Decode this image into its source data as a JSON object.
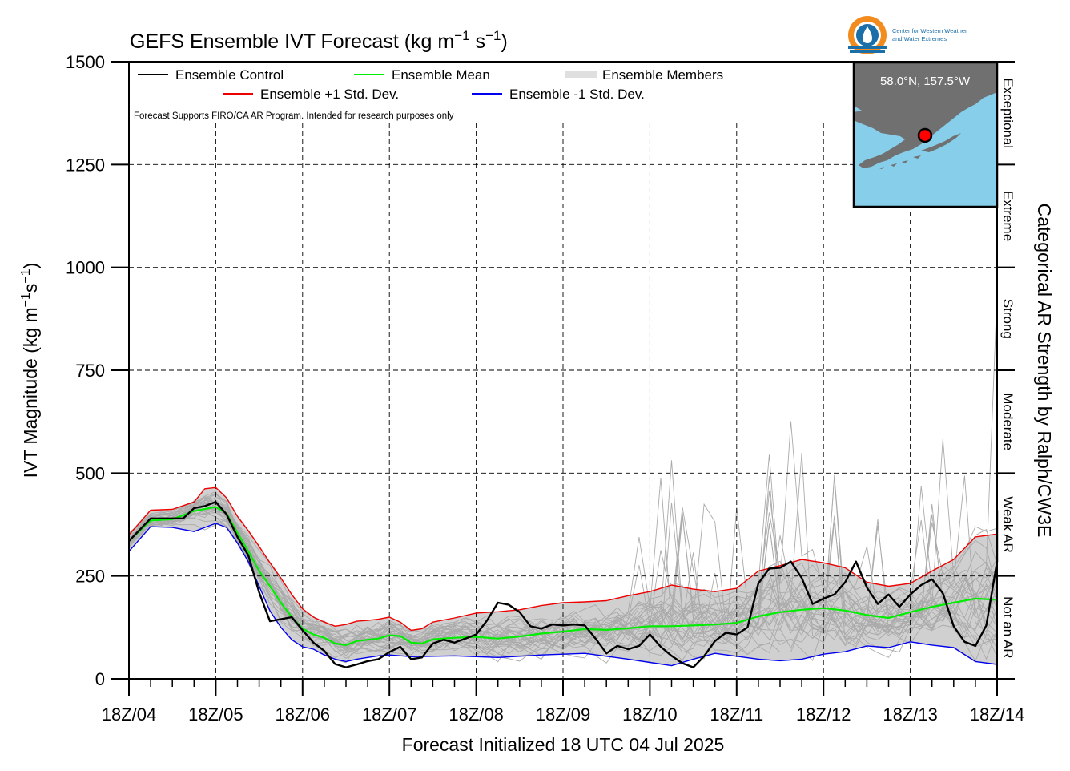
{
  "page": {
    "title_main": "GEFS Ensemble IVT Forecast (kg m",
    "title_exp1": "−1",
    "title_mid": " s",
    "title_exp2": "−1",
    "title_end": ")",
    "disclaimer": "Forecast Supports FIRO/CA AR Program. Intended for research purposes only",
    "logo_line1": "Center for Western Weather",
    "logo_line2": "and Water Extremes",
    "location": "58.0°N, 157.5°W"
  },
  "colors": {
    "control": "#000000",
    "mean": "#00ee00",
    "plus_std": "#ee0000",
    "minus_std": "#0000ee",
    "members": "#aaaaaa",
    "spread_fill": "#d0d0d0",
    "map_ocean": "#87ceeb",
    "map_land": "#707070",
    "location_marker": "#ff0000"
  },
  "chart_data": {
    "type": "line",
    "title": "GEFS Ensemble IVT Forecast (kg m−1 s−1)",
    "xlabel": "Forecast Initialized 18 UTC 04 Jul 2025",
    "ylabel": "IVT Magnitude (kg m−1s−1)",
    "ylabel_main": "IVT Magnitude (kg m",
    "ylabel_exp1": "−1",
    "ylabel_mid": "s",
    "ylabel_exp2": "−1",
    "ylabel_end": ")",
    "right_label": "Categorical AR Strength by Ralph/CW3E",
    "xlim": [
      0,
      240
    ],
    "ylim": [
      0,
      1500
    ],
    "xtick_labels": [
      "18Z/04",
      "18Z/05",
      "18Z/06",
      "18Z/07",
      "18Z/08",
      "18Z/09",
      "18Z/10",
      "18Z/11",
      "18Z/12",
      "18Z/13",
      "18Z/14"
    ],
    "xtick_hours": [
      0,
      24,
      48,
      72,
      96,
      120,
      144,
      168,
      192,
      216,
      240
    ],
    "ytick_values": [
      0,
      250,
      500,
      750,
      1000,
      1250,
      1500
    ],
    "grid": true,
    "categories": [
      {
        "label": "Not an AR",
        "range": [
          0,
          250
        ]
      },
      {
        "label": "Weak AR",
        "range": [
          250,
          500
        ]
      },
      {
        "label": "Moderate",
        "range": [
          500,
          750
        ]
      },
      {
        "label": "Strong",
        "range": [
          750,
          1000
        ]
      },
      {
        "label": "Extreme",
        "range": [
          1000,
          1250
        ]
      },
      {
        "label": "Exceptional",
        "range": [
          1250,
          1500
        ]
      }
    ],
    "legend": [
      {
        "name": "Ensemble Control",
        "key": "control"
      },
      {
        "name": "Ensemble Mean",
        "key": "mean"
      },
      {
        "name": "Ensemble Members",
        "key": "members"
      },
      {
        "name": "Ensemble +1 Std. Dev.",
        "key": "plus_std"
      },
      {
        "name": "Ensemble -1 Std. Dev.",
        "key": "minus_std"
      }
    ],
    "legend_position": "top-left",
    "series": [
      {
        "name": "Ensemble Control",
        "key": "control",
        "points": [
          [
            0,
            335
          ],
          [
            6,
            390
          ],
          [
            12,
            390
          ],
          [
            15,
            390
          ],
          [
            18,
            415
          ],
          [
            21,
            420
          ],
          [
            24,
            430
          ],
          [
            27,
            400
          ],
          [
            30,
            345
          ],
          [
            33,
            300
          ],
          [
            36,
            210
          ],
          [
            39,
            140
          ],
          [
            45,
            150
          ],
          [
            48,
            118
          ],
          [
            51,
            88
          ],
          [
            54,
            68
          ],
          [
            57,
            36
          ],
          [
            60,
            28
          ],
          [
            63,
            35
          ],
          [
            66,
            43
          ],
          [
            69,
            48
          ],
          [
            72,
            65
          ],
          [
            75,
            78
          ],
          [
            78,
            48
          ],
          [
            81,
            52
          ],
          [
            84,
            86
          ],
          [
            87,
            95
          ],
          [
            90,
            88
          ],
          [
            93,
            98
          ],
          [
            96,
            108
          ],
          [
            99,
            142
          ],
          [
            102,
            185
          ],
          [
            105,
            180
          ],
          [
            108,
            162
          ],
          [
            111,
            128
          ],
          [
            114,
            122
          ],
          [
            117,
            132
          ],
          [
            120,
            130
          ],
          [
            123,
            132
          ],
          [
            126,
            130
          ],
          [
            129,
            98
          ],
          [
            132,
            62
          ],
          [
            135,
            80
          ],
          [
            138,
            72
          ],
          [
            141,
            80
          ],
          [
            144,
            108
          ],
          [
            147,
            78
          ],
          [
            150,
            56
          ],
          [
            153,
            38
          ],
          [
            156,
            28
          ],
          [
            159,
            55
          ],
          [
            162,
            92
          ],
          [
            165,
            112
          ],
          [
            168,
            108
          ],
          [
            171,
            125
          ],
          [
            174,
            232
          ],
          [
            177,
            268
          ],
          [
            180,
            270
          ],
          [
            183,
            285
          ],
          [
            186,
            245
          ],
          [
            189,
            182
          ],
          [
            192,
            195
          ],
          [
            195,
            205
          ],
          [
            198,
            235
          ],
          [
            201,
            285
          ],
          [
            204,
            222
          ],
          [
            207,
            182
          ],
          [
            210,
            205
          ],
          [
            213,
            175
          ],
          [
            216,
            205
          ],
          [
            219,
            228
          ],
          [
            222,
            242
          ],
          [
            225,
            208
          ],
          [
            228,
            128
          ],
          [
            231,
            90
          ],
          [
            234,
            80
          ],
          [
            237,
            130
          ],
          [
            240,
            285
          ],
          [
            243,
            410
          ]
        ]
      },
      {
        "name": "Ensemble Mean",
        "key": "mean",
        "points": [
          [
            0,
            335
          ],
          [
            6,
            385
          ],
          [
            12,
            388
          ],
          [
            18,
            408
          ],
          [
            24,
            418
          ],
          [
            27,
            402
          ],
          [
            30,
            355
          ],
          [
            33,
            310
          ],
          [
            36,
            262
          ],
          [
            39,
            225
          ],
          [
            42,
            185
          ],
          [
            45,
            150
          ],
          [
            48,
            122
          ],
          [
            51,
            108
          ],
          [
            54,
            100
          ],
          [
            57,
            86
          ],
          [
            60,
            82
          ],
          [
            63,
            92
          ],
          [
            66,
            95
          ],
          [
            69,
            98
          ],
          [
            72,
            106
          ],
          [
            75,
            104
          ],
          [
            78,
            88
          ],
          [
            81,
            86
          ],
          [
            84,
            96
          ],
          [
            90,
            100
          ],
          [
            96,
            102
          ],
          [
            102,
            98
          ],
          [
            108,
            103
          ],
          [
            114,
            110
          ],
          [
            120,
            115
          ],
          [
            126,
            121
          ],
          [
            132,
            119
          ],
          [
            138,
            123
          ],
          [
            144,
            128
          ],
          [
            150,
            128
          ],
          [
            156,
            130
          ],
          [
            162,
            132
          ],
          [
            168,
            136
          ],
          [
            174,
            152
          ],
          [
            180,
            162
          ],
          [
            186,
            168
          ],
          [
            192,
            172
          ],
          [
            198,
            166
          ],
          [
            204,
            155
          ],
          [
            210,
            148
          ],
          [
            216,
            162
          ],
          [
            222,
            175
          ],
          [
            228,
            185
          ],
          [
            234,
            195
          ],
          [
            240,
            192
          ],
          [
            243,
            185
          ]
        ]
      },
      {
        "name": "Ensemble +1 Std. Dev.",
        "key": "plus_std",
        "points": [
          [
            0,
            350
          ],
          [
            6,
            410
          ],
          [
            12,
            412
          ],
          [
            18,
            430
          ],
          [
            21,
            462
          ],
          [
            24,
            465
          ],
          [
            27,
            440
          ],
          [
            30,
            395
          ],
          [
            33,
            360
          ],
          [
            36,
            322
          ],
          [
            39,
            282
          ],
          [
            42,
            245
          ],
          [
            45,
            205
          ],
          [
            48,
            170
          ],
          [
            51,
            150
          ],
          [
            54,
            138
          ],
          [
            57,
            128
          ],
          [
            60,
            132
          ],
          [
            63,
            140
          ],
          [
            66,
            142
          ],
          [
            69,
            145
          ],
          [
            72,
            150
          ],
          [
            75,
            138
          ],
          [
            78,
            118
          ],
          [
            81,
            122
          ],
          [
            84,
            138
          ],
          [
            90,
            148
          ],
          [
            96,
            160
          ],
          [
            102,
            163
          ],
          [
            108,
            168
          ],
          [
            114,
            178
          ],
          [
            120,
            185
          ],
          [
            126,
            187
          ],
          [
            132,
            190
          ],
          [
            138,
            202
          ],
          [
            144,
            212
          ],
          [
            150,
            228
          ],
          [
            156,
            218
          ],
          [
            162,
            212
          ],
          [
            168,
            220
          ],
          [
            174,
            262
          ],
          [
            180,
            275
          ],
          [
            186,
            290
          ],
          [
            192,
            282
          ],
          [
            198,
            270
          ],
          [
            204,
            235
          ],
          [
            210,
            225
          ],
          [
            216,
            232
          ],
          [
            222,
            262
          ],
          [
            228,
            290
          ],
          [
            234,
            345
          ],
          [
            240,
            352
          ],
          [
            243,
            330
          ]
        ]
      },
      {
        "name": "Ensemble -1 Std. Dev.",
        "key": "minus_std",
        "points": [
          [
            0,
            310
          ],
          [
            6,
            370
          ],
          [
            12,
            368
          ],
          [
            18,
            358
          ],
          [
            24,
            378
          ],
          [
            27,
            368
          ],
          [
            30,
            330
          ],
          [
            33,
            285
          ],
          [
            36,
            225
          ],
          [
            39,
            165
          ],
          [
            42,
            125
          ],
          [
            45,
            95
          ],
          [
            48,
            78
          ],
          [
            51,
            72
          ],
          [
            54,
            58
          ],
          [
            57,
            48
          ],
          [
            60,
            42
          ],
          [
            63,
            48
          ],
          [
            66,
            52
          ],
          [
            69,
            56
          ],
          [
            72,
            58
          ],
          [
            78,
            54
          ],
          [
            84,
            55
          ],
          [
            90,
            56
          ],
          [
            96,
            54
          ],
          [
            102,
            52
          ],
          [
            108,
            55
          ],
          [
            114,
            58
          ],
          [
            120,
            60
          ],
          [
            126,
            62
          ],
          [
            132,
            55
          ],
          [
            138,
            48
          ],
          [
            144,
            40
          ],
          [
            150,
            32
          ],
          [
            156,
            48
          ],
          [
            162,
            62
          ],
          [
            168,
            55
          ],
          [
            174,
            48
          ],
          [
            180,
            44
          ],
          [
            186,
            48
          ],
          [
            192,
            60
          ],
          [
            198,
            66
          ],
          [
            204,
            80
          ],
          [
            210,
            76
          ],
          [
            216,
            90
          ],
          [
            222,
            82
          ],
          [
            228,
            76
          ],
          [
            234,
            42
          ],
          [
            240,
            35
          ],
          [
            243,
            48
          ]
        ]
      }
    ]
  }
}
